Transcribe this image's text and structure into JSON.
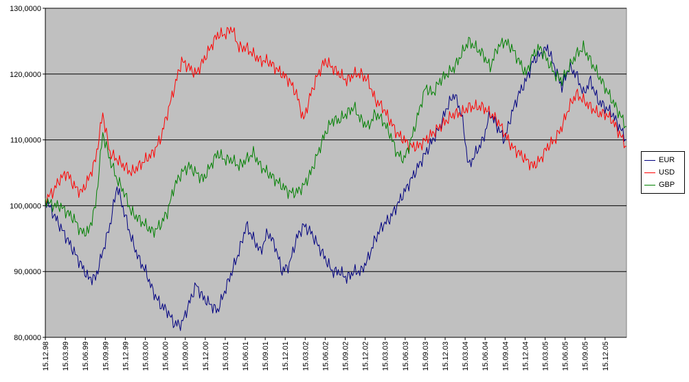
{
  "chart_data": {
    "type": "line",
    "title": "",
    "xlabel": "",
    "ylabel": "",
    "ylim": [
      80,
      130
    ],
    "yticks": [
      "80,0000",
      "90,0000",
      "100,0000",
      "110,0000",
      "120,0000",
      "130,0000"
    ],
    "ytick_values": [
      80,
      90,
      100,
      110,
      120,
      130
    ],
    "xticks": [
      "15.12.98",
      "15.03.99",
      "15.06.99",
      "15.09.99",
      "15.12.99",
      "15.03.00",
      "15.06.00",
      "15.09.00",
      "15.12.00",
      "15.03.01",
      "15.06.01",
      "15.09.01",
      "15.12.01",
      "15.03.02",
      "15.06.02",
      "15.09.02",
      "15.12.02",
      "15.03.03",
      "15.06.03",
      "15.09.03",
      "15.12.03",
      "15.03.04",
      "15.06.04",
      "15.09.04",
      "15.12.04",
      "15.03.05",
      "15.06.05",
      "15.09.05",
      "15.12.05"
    ],
    "grid": "horizontal",
    "plot_background": "#c0c0c0",
    "legend_position": "right",
    "series": [
      {
        "name": "EUR",
        "color": "#000080",
        "values": [
          101,
          99,
          97,
          95,
          93,
          91,
          89,
          89,
          93,
          97,
          103,
          99,
          95,
          92,
          90,
          87,
          85,
          84,
          82,
          82,
          85,
          88,
          86,
          85,
          84,
          87,
          90,
          93,
          97,
          95,
          93,
          96,
          94,
          90,
          91,
          95,
          97,
          96,
          94,
          92,
          90,
          90,
          89,
          90,
          90,
          92,
          95,
          97,
          98,
          100,
          102,
          104,
          106,
          108,
          110,
          112,
          115,
          117,
          114,
          106,
          108,
          110,
          114,
          112,
          110,
          114,
          117,
          119,
          122,
          123,
          124,
          121,
          118,
          121,
          120,
          117,
          119,
          116,
          115,
          114,
          112,
          110
        ]
      },
      {
        "name": "USD",
        "color": "#ff0000",
        "values": [
          101,
          102,
          104,
          105,
          103,
          102,
          104,
          107,
          114,
          108,
          107,
          106,
          105,
          106,
          107,
          108,
          110,
          114,
          118,
          122,
          121,
          120,
          122,
          124,
          126,
          126,
          127,
          124,
          124,
          123,
          122,
          122,
          121,
          120,
          119,
          117,
          113,
          117,
          120,
          122,
          121,
          120,
          119,
          120,
          120,
          119,
          116,
          115,
          113,
          111,
          110,
          109,
          109,
          110,
          111,
          112,
          113,
          114,
          114,
          115,
          115,
          115,
          114,
          113,
          111,
          109,
          108,
          107,
          106,
          107,
          109,
          110,
          112,
          115,
          117,
          116,
          115,
          114,
          114,
          113,
          111,
          109
        ]
      },
      {
        "name": "GBP",
        "color": "#008000",
        "values": [
          101,
          100,
          100,
          99,
          98,
          96,
          96,
          100,
          111,
          107,
          104,
          102,
          99,
          98,
          97,
          96,
          97,
          99,
          103,
          105,
          106,
          105,
          104,
          106,
          108,
          107,
          107,
          106,
          107,
          108,
          106,
          105,
          104,
          103,
          102,
          102,
          103,
          105,
          108,
          111,
          113,
          113,
          114,
          115,
          113,
          112,
          114,
          113,
          111,
          108,
          107,
          110,
          114,
          118,
          117,
          119,
          120,
          121,
          123,
          125,
          124,
          123,
          121,
          124,
          125,
          124,
          122,
          120,
          123,
          124,
          122,
          120,
          119,
          121,
          123,
          124,
          122,
          120,
          118,
          116,
          114,
          112
        ]
      }
    ]
  }
}
